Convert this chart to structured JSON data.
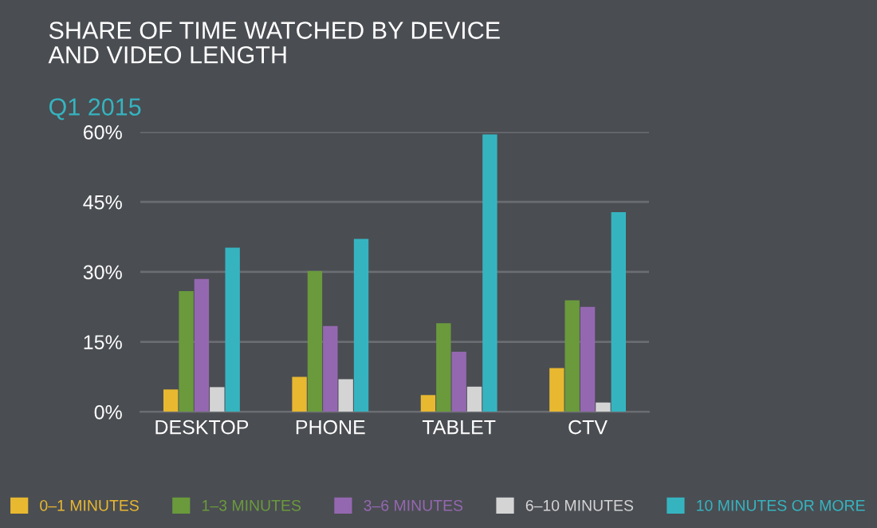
{
  "chart_data": {
    "type": "bar",
    "title": "SHARE OF TIME WATCHED BY DEVICE\nAND VIDEO LENGTH",
    "subtitle": "Q1 2015",
    "categories": [
      "DESKTOP",
      "PHONE",
      "TABLET",
      "CTV"
    ],
    "series": [
      {
        "name": "0–1 MINUTES",
        "color": "#e8b830",
        "values": [
          4.8,
          7.5,
          3.6,
          9.4
        ]
      },
      {
        "name": "1–3 MINUTES",
        "color": "#6a9a3c",
        "values": [
          25.9,
          30.2,
          19.0,
          23.9
        ]
      },
      {
        "name": "3–6 MINUTES",
        "color": "#9468b0",
        "values": [
          28.5,
          18.4,
          12.9,
          22.5
        ]
      },
      {
        "name": "6–10 MINUTES",
        "color": "#d4d4d4",
        "values": [
          5.3,
          7.0,
          5.4,
          2.0
        ]
      },
      {
        "name": "10 MINUTES OR MORE",
        "color": "#35b4c0",
        "values": [
          35.2,
          37.1,
          59.5,
          42.8
        ]
      }
    ],
    "ylim": [
      0,
      60
    ],
    "yticks": [
      {
        "value": 0,
        "label": "0%"
      },
      {
        "value": 15,
        "label": "15%"
      },
      {
        "value": 30,
        "label": "30%"
      },
      {
        "value": 45,
        "label": "45%"
      },
      {
        "value": 60,
        "label": "60%"
      }
    ],
    "grid": "y",
    "legend": "bottom"
  }
}
